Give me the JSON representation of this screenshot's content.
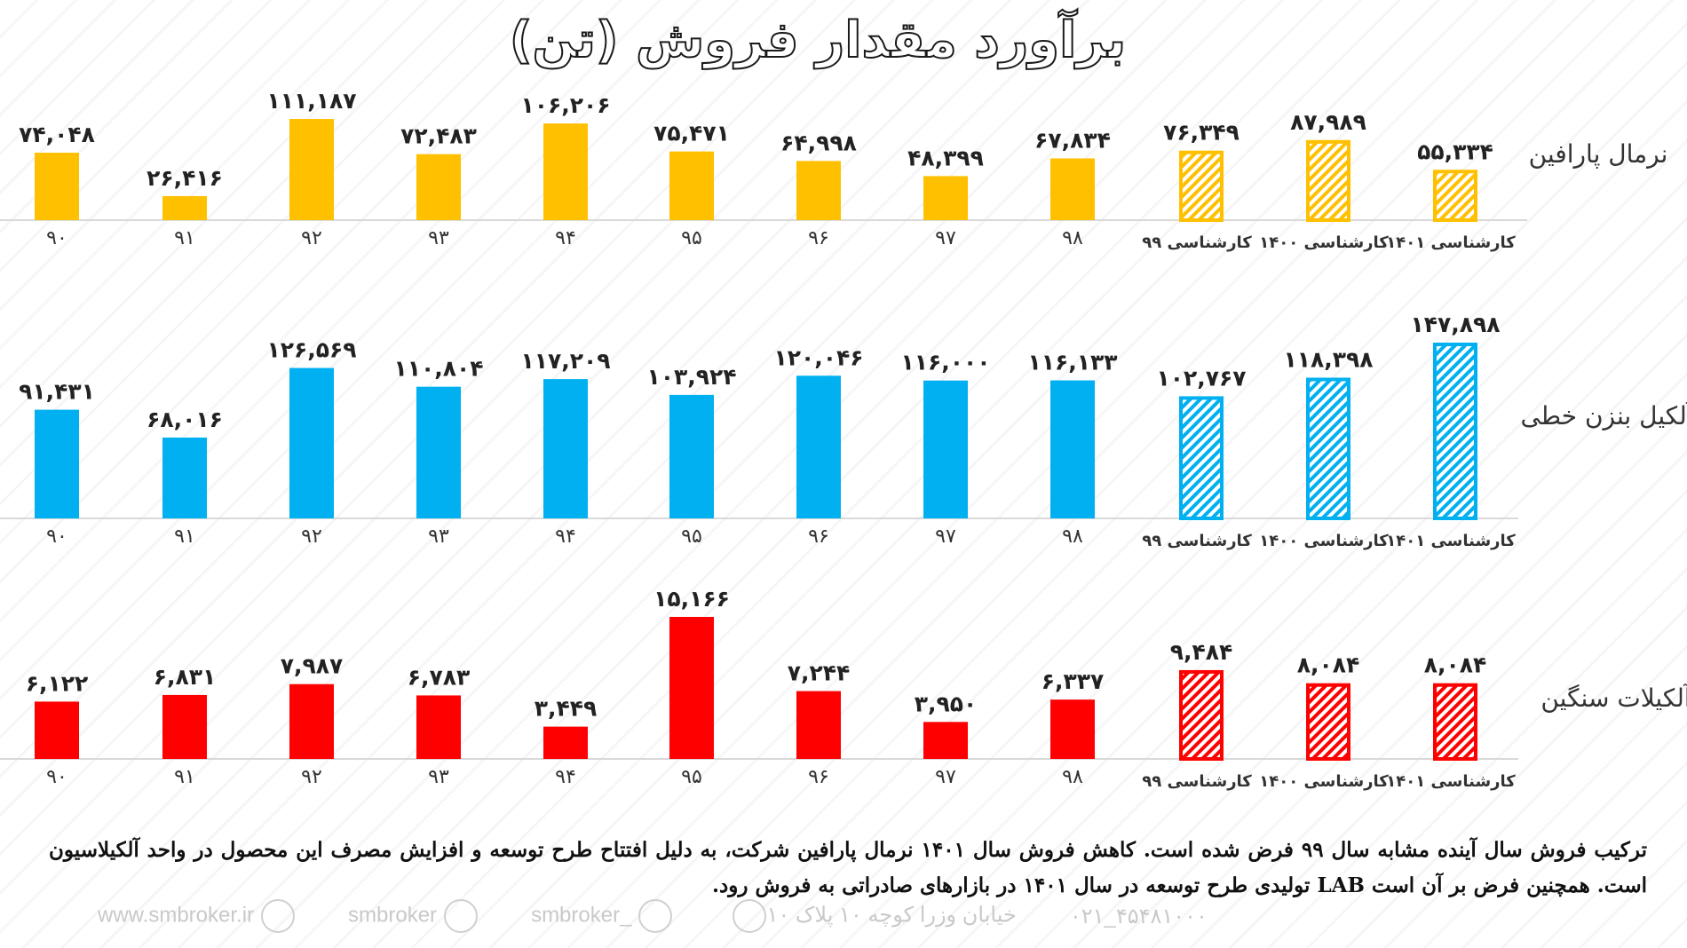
{
  "title": "برآورد مقدار فروش (تن)",
  "colors": {
    "paraffin": "#FFC000",
    "lab": "#00B0F0",
    "alkylate": "#FF0000"
  },
  "chart_data": [
    {
      "type": "bar",
      "name": "نرمال پارافین",
      "categories": [
        "۹۰",
        "۹۱",
        "۹۲",
        "۹۳",
        "۹۴",
        "۹۵",
        "۹۶",
        "۹۷",
        "۹۸",
        "کارشناسی ۹۹",
        "کارشناسی ۱۴۰۰",
        "کارشناسی ۱۴۰۱"
      ],
      "values": [
        74048,
        26416,
        111187,
        72483,
        106206,
        75471,
        64998,
        48399,
        67834,
        76349,
        87989,
        55334
      ],
      "labels": [
        "۷۴,۰۴۸",
        "۲۶,۴۱۶",
        "۱۱۱,۱۸۷",
        "۷۲,۴۸۳",
        "۱۰۶,۲۰۶",
        "۷۵,۴۷۱",
        "۶۴,۹۹۸",
        "۴۸,۳۹۹",
        "۶۷,۸۳۴",
        "۷۶,۳۴۹",
        "۸۷,۹۸۹",
        "۵۵,۳۳۴"
      ],
      "forecast": [
        false,
        false,
        false,
        false,
        false,
        false,
        false,
        false,
        false,
        true,
        true,
        true
      ]
    },
    {
      "type": "bar",
      "name": "آلکیل بنزن خطی",
      "categories": [
        "۹۰",
        "۹۱",
        "۹۲",
        "۹۳",
        "۹۴",
        "۹۵",
        "۹۶",
        "۹۷",
        "۹۸",
        "کارشناسی ۹۹",
        "کارشناسی ۱۴۰۰",
        "کارشناسی ۱۴۰۱"
      ],
      "values": [
        91431,
        68016,
        126569,
        110804,
        117209,
        103924,
        120046,
        116000,
        116133,
        102767,
        118398,
        147898
      ],
      "labels": [
        "۹۱,۴۳۱",
        "۶۸,۰۱۶",
        "۱۲۶,۵۶۹",
        "۱۱۰,۸۰۴",
        "۱۱۷,۲۰۹",
        "۱۰۳,۹۲۴",
        "۱۲۰,۰۴۶",
        "۱۱۶,۰۰۰",
        "۱۱۶,۱۳۳",
        "۱۰۲,۷۶۷",
        "۱۱۸,۳۹۸",
        "۱۴۷,۸۹۸"
      ],
      "forecast": [
        false,
        false,
        false,
        false,
        false,
        false,
        false,
        false,
        false,
        true,
        true,
        true
      ]
    },
    {
      "type": "bar",
      "name": "آلکیلات سنگین",
      "categories": [
        "۹۰",
        "۹۱",
        "۹۲",
        "۹۳",
        "۹۴",
        "۹۵",
        "۹۶",
        "۹۷",
        "۹۸",
        "کارشناسی ۹۹",
        "کارشناسی ۱۴۰۰",
        "کارشناسی ۱۴۰۱"
      ],
      "values": [
        6122,
        6831,
        7987,
        6783,
        3449,
        15166,
        7244,
        3950,
        6337,
        9484,
        8084,
        8084
      ],
      "labels": [
        "۶,۱۲۲",
        "۶,۸۳۱",
        "۷,۹۸۷",
        "۶,۷۸۳",
        "۳,۴۴۹",
        "۱۵,۱۶۶",
        "۷,۲۴۴",
        "۳,۹۵۰",
        "۶,۳۳۷",
        "۹,۴۸۴",
        "۸,۰۸۴",
        "۸,۰۸۴"
      ],
      "forecast": [
        false,
        false,
        false,
        false,
        false,
        false,
        false,
        false,
        false,
        true,
        true,
        true
      ]
    }
  ],
  "note": "ترکیب فروش سال آینده مشابه سال ۹۹ فرض شده است. کاهش فروش سال ۱۴۰۱ نرمال پارافین شرکت، به دلیل افتتاح طرح توسعه و افزایش مصرف این محصول در واحد آلکیلاسیون است. همچنین فرض بر آن است LAB تولیدی طرح توسعه در سال ۱۴۰۱ در بازارهای صادراتی به فروش رود.",
  "footer": {
    "website": "www.smbroker.ir",
    "instagram": "smbroker",
    "telegram": "smbroker_",
    "address": "خیابان وزرا کوچه ۱۰ پلاک ۱۰",
    "phone": "۰۲۱_۴۵۴۸۱۰۰۰"
  }
}
